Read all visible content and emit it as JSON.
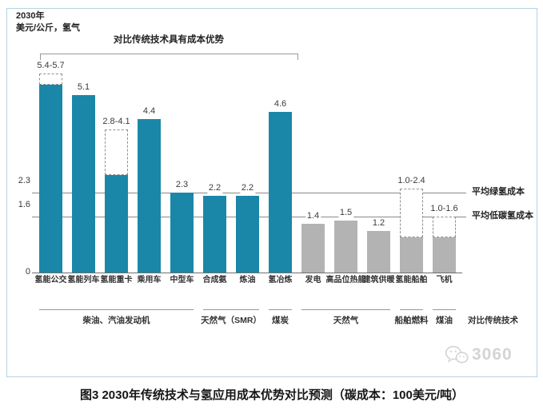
{
  "page": {
    "caption": "图3 2030年传统技术与氢应用成本优势对比预测（碳成本：100美元/吨）",
    "watermark": "3060"
  },
  "chart_data": {
    "type": "bar",
    "header": {
      "line1": "2030年",
      "line2": "美元/公斤，氢气"
    },
    "bracket_label": "对比传统技术具有成本优势",
    "bracket_span": [
      0,
      7
    ],
    "ylabel": "美元/公斤，氢气",
    "ylim": [
      0,
      6
    ],
    "y_ticks": [
      0,
      1.6,
      2.3
    ],
    "series_colors": {
      "hydrogen": "#1b87a8",
      "reference": "#b3b3b3"
    },
    "bars": [
      {
        "category": "氢能公交",
        "label": "5.4-5.7",
        "value": 5.4,
        "high": 5.7,
        "series": "hydrogen"
      },
      {
        "category": "氢能列车",
        "label": "5.1",
        "value": 5.1,
        "high": null,
        "series": "hydrogen"
      },
      {
        "category": "氢能重卡",
        "label": "2.8-4.1",
        "value": 2.8,
        "high": 4.1,
        "series": "hydrogen"
      },
      {
        "category": "乘用车",
        "label": "4.4",
        "value": 4.4,
        "high": null,
        "series": "hydrogen"
      },
      {
        "category": "中型车",
        "label": "2.3",
        "value": 2.3,
        "high": null,
        "series": "hydrogen"
      },
      {
        "category": "合成氨",
        "label": "2.2",
        "value": 2.2,
        "high": null,
        "series": "hydrogen"
      },
      {
        "category": "炼油",
        "label": "2.2",
        "value": 2.2,
        "high": null,
        "series": "hydrogen"
      },
      {
        "category": "氢冶炼",
        "label": "4.6",
        "value": 4.6,
        "high": null,
        "series": "hydrogen"
      },
      {
        "category": "发电",
        "label": "1.4",
        "value": 1.4,
        "high": null,
        "series": "reference"
      },
      {
        "category": "高品位热能",
        "label": "1.5",
        "value": 1.5,
        "high": null,
        "series": "reference"
      },
      {
        "category": "建筑供暖",
        "label": "1.2",
        "value": 1.2,
        "high": null,
        "series": "reference"
      },
      {
        "category": "氢能船舶",
        "label": "1.0-2.4",
        "value": 1.0,
        "high": 2.4,
        "series": "reference"
      },
      {
        "category": "飞机",
        "label": "1.0-1.6",
        "value": 1.0,
        "high": 1.6,
        "series": "reference"
      }
    ],
    "reference_lines": [
      {
        "value": 2.3,
        "label": "平均绿氢成本"
      },
      {
        "value": 1.6,
        "label": "平均低碳氢成本"
      }
    ],
    "groups": [
      {
        "label": "柴油、汽油发动机",
        "start": 0,
        "end": 4
      },
      {
        "label": "天然气（SMR）",
        "start": 5,
        "end": 6
      },
      {
        "label": "煤炭",
        "start": 7,
        "end": 7
      },
      {
        "label": "天然气",
        "start": 8,
        "end": 10
      },
      {
        "label": "船舶燃料",
        "start": 11,
        "end": 11
      },
      {
        "label": "煤油",
        "start": 12,
        "end": 12
      }
    ],
    "groups_row_label": "对比传统技术"
  }
}
